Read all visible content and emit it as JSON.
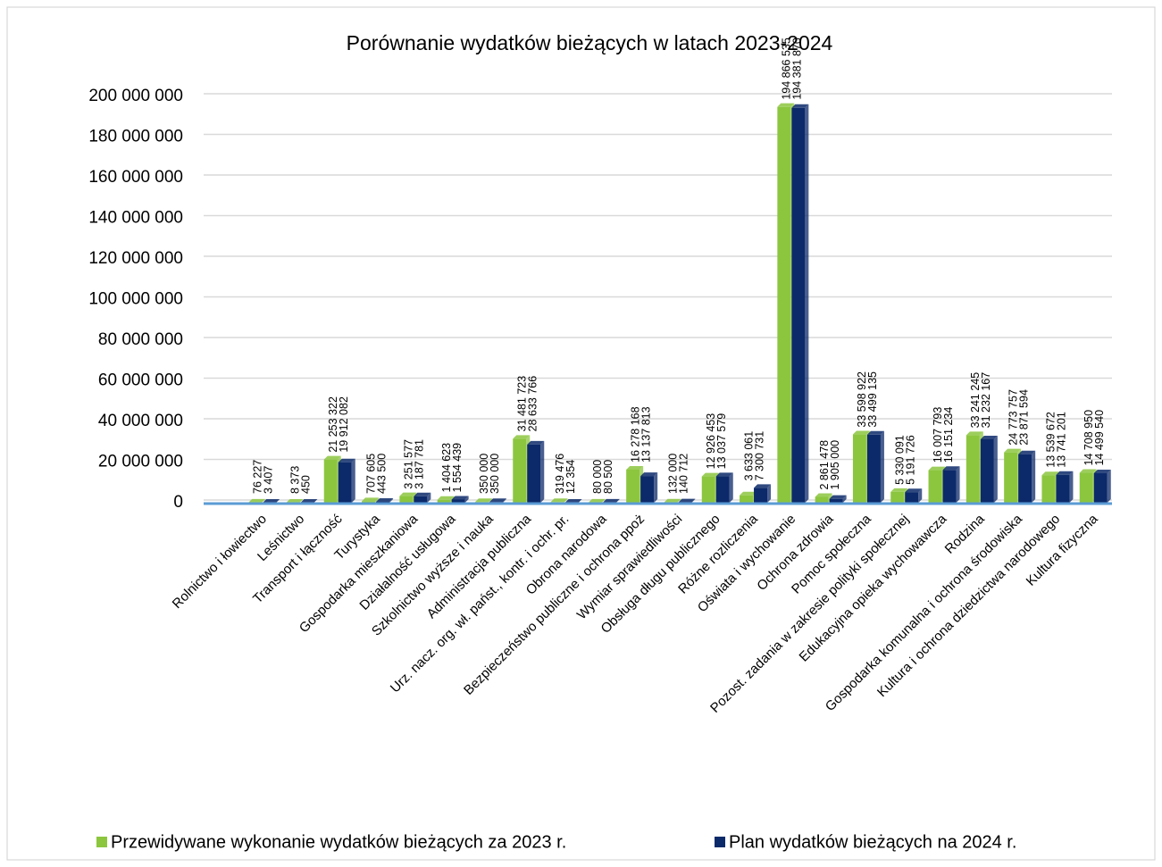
{
  "chart_data": {
    "type": "bar",
    "title": "Porównanie wydatków bieżących w latach 2023-2024",
    "categories": [
      "Rolnictwo i łowiectwo",
      "Leśnictwo",
      "Transport i łączność",
      "Turystyka",
      "Gospodarka mieszkaniowa",
      "Działalność usługowa",
      "Szkolnictwo wyższe i nauka",
      "Administracja publiczna",
      "Urz. nacz. org. wł. państ., kontr. i ochr. pr.",
      "Obrona narodowa",
      "Bezpieczeństwo publiczne i ochrona ppoż",
      "Wymiar sprawiedliwości",
      "Obsługa długu publicznego",
      "Różne rozliczenia",
      "Oświata i wychowanie",
      "Ochrona zdrowia",
      "Pomoc społeczna",
      "Pozost. zadania w zakresie polityki społecznej",
      "Edukacyjna opieka wychowawcza",
      "Rodzina",
      "Gospodarka komunalna i ochrona środowiska",
      "Kultura i ochrona dziedzictwa narodowego",
      "Kultura fizyczna"
    ],
    "series": [
      {
        "name": "Przewidywane wykonanie wydatków bieżących za 2023 r.",
        "color": "#8cc63f",
        "values": [
          76227,
          8373,
          21253322,
          707605,
          3251577,
          1404623,
          350000,
          31481723,
          319476,
          80000,
          16278168,
          132000,
          12926453,
          3633061,
          194866535,
          2861478,
          33598922,
          5330091,
          16007793,
          33241245,
          24773757,
          13539672,
          14708950
        ],
        "value_labels": [
          "76 227",
          "8 373",
          "21 253 322",
          "707 605",
          "3 251 577",
          "1 404 623",
          "350 000",
          "31 481 723",
          "319 476",
          "80 000",
          "16 278 168",
          "132 000",
          "12 926 453",
          "3 633 061",
          "194 866 535",
          "2 861 478",
          "33 598 922",
          "5 330 091",
          "16 007 793",
          "33 241 245",
          "24 773 757",
          "13 539 672",
          "14 708 950"
        ]
      },
      {
        "name": "Plan wydatków bieżących na 2024 r.",
        "color": "#0c2a6a",
        "values": [
          3407,
          450,
          19912082,
          443500,
          3187781,
          1554439,
          350000,
          28633766,
          12354,
          80500,
          13137813,
          140712,
          13037579,
          7300731,
          194381870,
          1905000,
          33499135,
          5191726,
          16151234,
          31232167,
          23871594,
          13741201,
          14499540
        ],
        "value_labels": [
          "3 407",
          "450",
          "19 912 082",
          "443 500",
          "3 187 781",
          "1 554 439",
          "350 000",
          "28 633 766",
          "12 354",
          "80 500",
          "13 137 813",
          "140 712",
          "13 037 579",
          "7 300 731",
          "194 381 870",
          "1 905 000",
          "33 499 135",
          "5 191 726",
          "16 151 234",
          "31 232 167",
          "23 871 594",
          "13 741 201",
          "14 499 540"
        ]
      }
    ],
    "ylim": [
      0,
      200000000
    ],
    "yticks": [
      0,
      {
        "value": 20000000,
        "label": "20 000 000"
      },
      {
        "value": 40000000,
        "label": "40 000 000"
      },
      {
        "value": 60000000,
        "label": "60 000 000"
      },
      {
        "value": 80000000,
        "label": "80 000 000"
      },
      {
        "value": 100000000,
        "label": "100 000 000"
      },
      {
        "value": 120000000,
        "label": "120 000 000"
      },
      {
        "value": 140000000,
        "label": "140 000 000"
      },
      {
        "value": 160000000,
        "label": "160 000 000"
      },
      {
        "value": 180000000,
        "label": "180 000 000"
      },
      {
        "value": 200000000,
        "label": "200 000 000"
      }
    ],
    "grid": true,
    "legend": "bottom"
  }
}
